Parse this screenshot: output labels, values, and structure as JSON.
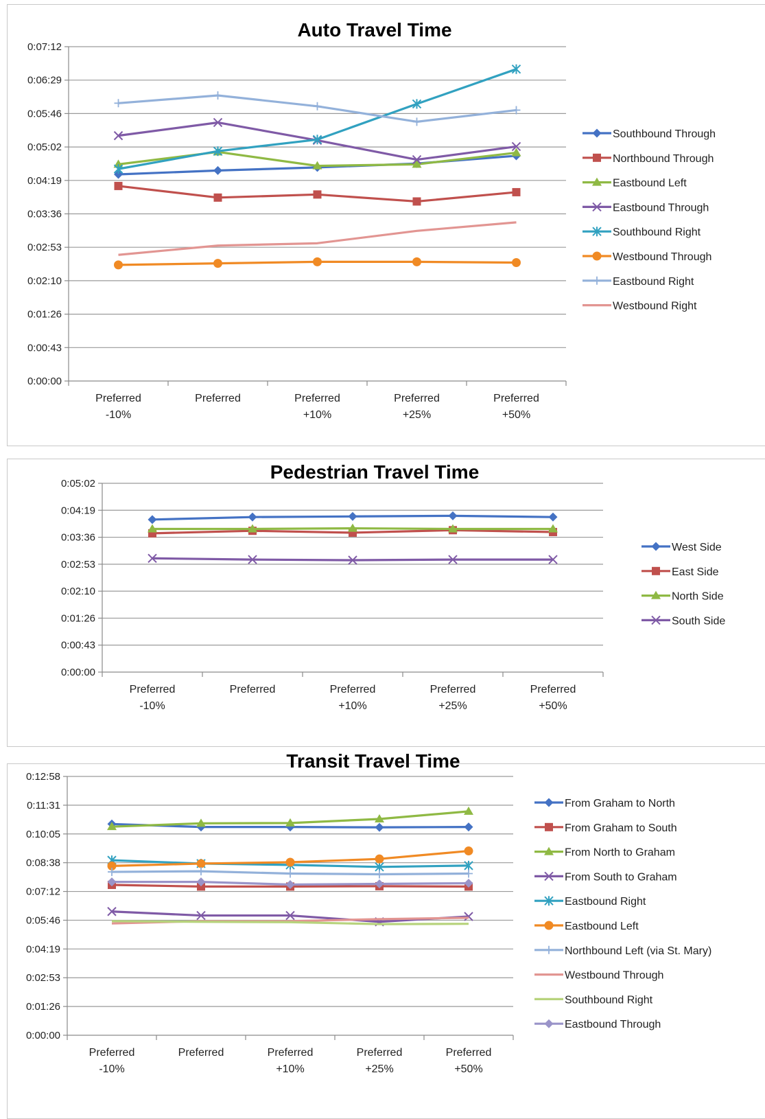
{
  "chart_data": [
    {
      "type": "line",
      "title": "Auto Travel Time",
      "categories": [
        [
          "Preferred",
          "-10%"
        ],
        [
          "Preferred",
          ""
        ],
        [
          "Preferred",
          "+10%"
        ],
        [
          "Preferred",
          "+25%"
        ],
        [
          "Preferred",
          "+50%"
        ]
      ],
      "yticks": [
        "0:00:00",
        "0:00:43",
        "0:01:26",
        "0:02:10",
        "0:02:53",
        "0:03:36",
        "0:04:19",
        "0:05:02",
        "0:05:46",
        "0:06:29",
        "0:07:12"
      ],
      "ylim": [
        0,
        432
      ],
      "legend": "right",
      "grid": true,
      "series": [
        {
          "name": "Southbound Through",
          "color": "#4472c4",
          "marker": "diamond",
          "values": [
            267,
            272,
            276,
            281,
            291
          ]
        },
        {
          "name": "Northbound Through",
          "color": "#c0504d",
          "marker": "square",
          "values": [
            252,
            237,
            241,
            232,
            244
          ]
        },
        {
          "name": "Eastbound Left",
          "color": "#8fb944",
          "marker": "triangle",
          "values": [
            280,
            296,
            278,
            280,
            295
          ]
        },
        {
          "name": "Eastbound Through",
          "color": "#7f5aa6",
          "marker": "x",
          "values": [
            317,
            334,
            311,
            286,
            303
          ]
        },
        {
          "name": "Southbound Right",
          "color": "#31a1c0",
          "marker": "star",
          "values": [
            274,
            297,
            312,
            358,
            403
          ]
        },
        {
          "name": "Westbound Through",
          "color": "#f08a24",
          "marker": "circle",
          "values": [
            150,
            152,
            154,
            154,
            153
          ]
        },
        {
          "name": "Eastbound Right",
          "color": "#93b1da",
          "marker": "plus",
          "values": [
            359,
            369,
            355,
            335,
            350
          ]
        },
        {
          "name": "Westbound Right",
          "color": "#e29592",
          "marker": "none",
          "values": [
            163,
            175,
            178,
            194,
            205
          ]
        }
      ]
    },
    {
      "type": "line",
      "title": "Pedestrian Travel Time",
      "categories": [
        [
          "Preferred",
          "-10%"
        ],
        [
          "Preferred",
          ""
        ],
        [
          "Preferred",
          "+10%"
        ],
        [
          "Preferred",
          "+25%"
        ],
        [
          "Preferred",
          "+50%"
        ]
      ],
      "yticks": [
        "0:00:00",
        "0:00:43",
        "0:01:26",
        "0:02:10",
        "0:02:53",
        "0:03:36",
        "0:04:19",
        "0:05:02"
      ],
      "ylim": [
        0,
        302
      ],
      "legend": "right",
      "grid": true,
      "series": [
        {
          "name": "West Side",
          "color": "#4472c4",
          "marker": "diamond",
          "values": [
            244,
            248,
            249,
            250,
            248
          ]
        },
        {
          "name": "East Side",
          "color": "#c0504d",
          "marker": "square",
          "values": [
            222,
            226,
            223,
            227,
            224
          ]
        },
        {
          "name": "North Side",
          "color": "#8fb944",
          "marker": "triangle",
          "values": [
            229,
            229,
            230,
            229,
            229
          ]
        },
        {
          "name": "South Side",
          "color": "#7f5aa6",
          "marker": "x",
          "values": [
            182,
            180,
            179,
            180,
            180
          ]
        }
      ]
    },
    {
      "type": "line",
      "title": "Transit Travel Time",
      "categories": [
        [
          "Preferred",
          "-10%"
        ],
        [
          "Preferred",
          ""
        ],
        [
          "Preferred",
          "+10%"
        ],
        [
          "Preferred",
          "+25%"
        ],
        [
          "Preferred",
          "+50%"
        ]
      ],
      "yticks": [
        "0:00:00",
        "0:01:26",
        "0:02:53",
        "0:04:19",
        "0:05:46",
        "0:07:12",
        "0:08:38",
        "0:10:05",
        "0:11:31",
        "0:12:58"
      ],
      "ylim": [
        0,
        778
      ],
      "legend": "right",
      "grid": true,
      "series": [
        {
          "name": "From Graham to North",
          "color": "#4472c4",
          "marker": "diamond",
          "values": [
            635,
            626,
            626,
            625,
            626
          ]
        },
        {
          "name": "From Graham to South",
          "color": "#c0504d",
          "marker": "square",
          "values": [
            452,
            447,
            447,
            448,
            447
          ]
        },
        {
          "name": "From North to Graham",
          "color": "#8fb944",
          "marker": "triangle",
          "values": [
            627,
            637,
            638,
            650,
            673
          ]
        },
        {
          "name": "From South to Graham",
          "color": "#7f5aa6",
          "marker": "x",
          "values": [
            372,
            360,
            360,
            341,
            357
          ]
        },
        {
          "name": "Eastbound Right",
          "color": "#31a1c0",
          "marker": "star",
          "values": [
            526,
            516,
            512,
            506,
            510
          ]
        },
        {
          "name": "Eastbound Left",
          "color": "#f08a24",
          "marker": "circle",
          "values": [
            509,
            516,
            520,
            530,
            554
          ]
        },
        {
          "name": "Northbound Left (via St. Mary)",
          "color": "#93b1da",
          "marker": "plus",
          "values": [
            491,
            493,
            486,
            484,
            486
          ]
        },
        {
          "name": "Westbound Through",
          "color": "#e29592",
          "marker": "none",
          "values": [
            336,
            343,
            343,
            349,
            353
          ]
        },
        {
          "name": "Southbound Right",
          "color": "#b7d37c",
          "marker": "none",
          "values": [
            343,
            341,
            340,
            334,
            335
          ]
        },
        {
          "name": "Eastbound Through",
          "color": "#9a94c9",
          "marker": "diamond",
          "values": [
            461,
            461,
            453,
            455,
            457
          ]
        }
      ]
    }
  ]
}
